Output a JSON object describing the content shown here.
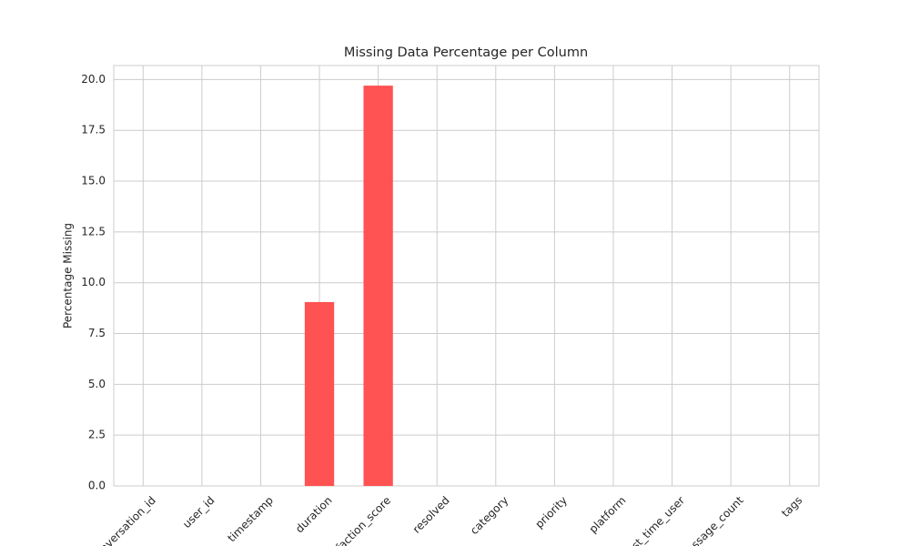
{
  "chart_data": {
    "type": "bar",
    "title": "Missing Data Percentage per Column",
    "y_label": "Percentage Missing",
    "categories": [
      "conversation_id",
      "user_id",
      "timestamp",
      "duration",
      "satisfaction_score",
      "resolved",
      "category",
      "priority",
      "platform",
      "first_time_user",
      "message_count",
      "tags"
    ],
    "values": [
      0,
      0,
      0,
      9.05,
      19.7,
      0,
      0,
      0,
      0,
      0,
      0,
      0
    ],
    "color": "#ff4c4c",
    "ylim": [
      0,
      20.69
    ],
    "yticks": [
      {
        "value": 0,
        "label": "0.0"
      },
      2.5,
      {
        "value": 5,
        "label": "5.0"
      },
      7.5,
      {
        "value": 10,
        "label": "10.0"
      },
      12.5,
      {
        "value": 15,
        "label": "15.0"
      },
      17.5,
      {
        "value": 20,
        "label": "20.0"
      }
    ],
    "grid": true
  }
}
